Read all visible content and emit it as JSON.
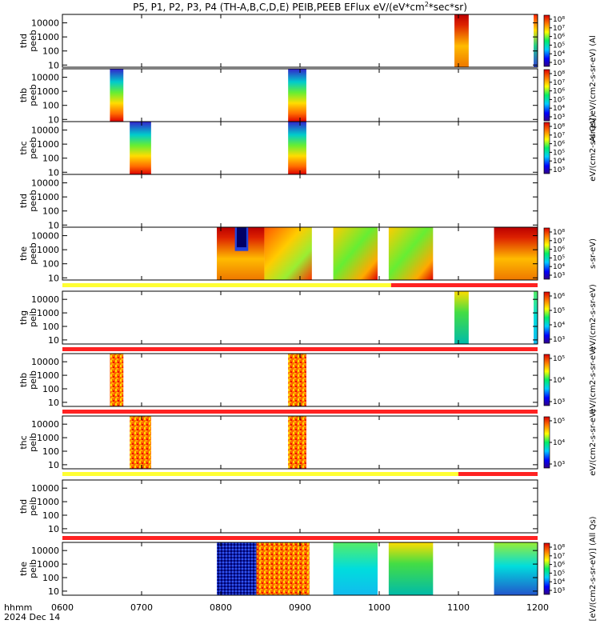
{
  "chart_data": {
    "type": "heatmap",
    "title": "P5, P1, P2, P3, P4 (TH-A,B,C,D,E) PEIB,PEEB EFlux eV/(eV*cm^2*sec*sr)",
    "title_parts": {
      "main": "P5, P1, P2, P3, P4 (TH-A,B,C,D,E) PEIB,PEEB EFlux eV/(eV*cm",
      "sup": "2",
      "tail": "*sec*sr)"
    },
    "x_axis": {
      "ticks": [
        "0600",
        "0700",
        "0800",
        "0900",
        "1000",
        "1100",
        "1200"
      ],
      "tick_hours": [
        6,
        7,
        8,
        9,
        10,
        11,
        12
      ],
      "range_hours": [
        6,
        12
      ],
      "label": "hhmm",
      "date": "2024 Dec 14"
    },
    "y_scale": "log",
    "y_ticks": [
      "10",
      "100",
      "1000",
      "10000"
    ],
    "y_tick_values": [
      10,
      100,
      1000,
      10000
    ],
    "panels": [
      {
        "label1": "thd",
        "label2": "peeb",
        "ylim": [
          7,
          40000
        ],
        "colorbar": {
          "ticks": [
            "10⁸",
            "10⁷",
            "10⁶",
            "10⁵",
            "10⁴",
            "10³"
          ],
          "label": "(Al"
        },
        "blocks": [
          {
            "t0": 10.95,
            "t1": 11.13,
            "kind": "hot",
            "note": "black trace"
          },
          {
            "t0": 11.95,
            "t1": 12.0,
            "kind": "mixed"
          }
        ]
      },
      {
        "label1": "thb",
        "label2": "peeb",
        "ylim": [
          7,
          40000
        ],
        "colorbar": {
          "ticks": [
            "10⁸",
            "10⁷",
            "10⁶",
            "10⁵",
            "10⁴",
            "10³"
          ],
          "label": "Al Qs] eV/(cm2-s-sr-eV)"
        },
        "blocks": [
          {
            "t0": 6.6,
            "t1": 6.77,
            "kind": "grad"
          },
          {
            "t0": 8.85,
            "t1": 9.08,
            "kind": "grad"
          }
        ]
      },
      {
        "label1": "thc",
        "label2": "peeb",
        "ylim": [
          7,
          40000
        ],
        "colorbar": {
          "ticks": [
            "10⁸",
            "10⁷",
            "10⁶",
            "10⁵",
            "10⁴",
            "10³"
          ],
          "label": "eV/(cm2-s-sr-eV)"
        },
        "blocks": [
          {
            "t0": 6.85,
            "t1": 7.12,
            "kind": "grad"
          },
          {
            "t0": 8.85,
            "t1": 9.08,
            "kind": "grad"
          }
        ]
      },
      {
        "label1": "thd",
        "label2": "peeb",
        "ylim": [
          7,
          40000
        ],
        "colorbar": null,
        "blocks": []
      },
      {
        "label1": "the",
        "label2": "peeb",
        "ylim": [
          7,
          40000
        ],
        "colorbar": {
          "ticks": [
            "10⁸",
            "10⁷",
            "10⁶",
            "10⁵",
            "10⁴",
            "10³"
          ],
          "label": "s-sr-eV)"
        },
        "blocks": [
          {
            "t0": 7.95,
            "t1": 8.55,
            "kind": "hotring"
          },
          {
            "t0": 8.55,
            "t1": 9.15,
            "kind": "warm"
          },
          {
            "t0": 9.42,
            "t1": 9.98,
            "kind": "greenwarm"
          },
          {
            "t0": 10.12,
            "t1": 10.68,
            "kind": "greenwarm"
          },
          {
            "t0": 11.45,
            "t1": 12.0,
            "kind": "hot"
          }
        ],
        "mode_bar": [
          {
            "t0": 6.0,
            "t1": 10.15,
            "color": "#ffff33"
          },
          {
            "t0": 10.15,
            "t1": 12.0,
            "color": "#ff2222"
          }
        ]
      },
      {
        "label1": "thg",
        "label2": "peib",
        "ylim": [
          5,
          40000
        ],
        "colorbar": {
          "ticks": [
            "10⁶",
            "10⁵",
            "10⁴",
            "10³"
          ],
          "label": "eV/(cm2-s-sr-eV)"
        },
        "blocks": [
          {
            "t0": 10.95,
            "t1": 11.13,
            "kind": "greengrad"
          },
          {
            "t0": 11.95,
            "t1": 12.0,
            "kind": "cyan"
          }
        ],
        "mode_bar": [
          {
            "t0": 6.0,
            "t1": 12.0,
            "color": "#ff2222"
          }
        ]
      },
      {
        "label1": "thb",
        "label2": "peib",
        "ylim": [
          5,
          40000
        ],
        "colorbar": {
          "ticks": [
            "10⁵",
            "10⁴",
            "10³"
          ],
          "label": "eV/(cm2-s-sr-eV)"
        },
        "blocks": [
          {
            "t0": 6.6,
            "t1": 6.77,
            "kind": "speckle"
          },
          {
            "t0": 8.85,
            "t1": 9.08,
            "kind": "speckle"
          }
        ],
        "mode_bar": [
          {
            "t0": 6.0,
            "t1": 12.0,
            "color": "#ff2222"
          }
        ]
      },
      {
        "label1": "thc",
        "label2": "peib",
        "ylim": [
          5,
          40000
        ],
        "colorbar": {
          "ticks": [
            "10⁵",
            "10⁴",
            "10³"
          ],
          "label": "eV/(cm2-s-sr-eV)"
        },
        "blocks": [
          {
            "t0": 6.85,
            "t1": 7.12,
            "kind": "speckle"
          },
          {
            "t0": 8.85,
            "t1": 9.08,
            "kind": "speckle"
          }
        ],
        "mode_bar": [
          {
            "t0": 6.0,
            "t1": 11.0,
            "color": "#ffff33"
          },
          {
            "t0": 11.0,
            "t1": 12.0,
            "color": "#ff2222"
          }
        ]
      },
      {
        "label1": "thd",
        "label2": "peib",
        "ylim": [
          5,
          40000
        ],
        "colorbar": null,
        "blocks": [],
        "mode_bar": [
          {
            "t0": 6.0,
            "t1": 12.0,
            "color": "#ff2222"
          }
        ]
      },
      {
        "label1": "the",
        "label2": "peib",
        "ylim": [
          5,
          40000
        ],
        "colorbar": {
          "ticks": [
            "10⁸",
            "10⁷",
            "10⁶",
            "10⁵",
            "10⁴",
            "10³"
          ],
          "label": "[eV/(cm2-s-sr-eV)] (All Qs)"
        },
        "blocks": [
          {
            "t0": 7.95,
            "t1": 8.45,
            "kind": "speckledark"
          },
          {
            "t0": 8.45,
            "t1": 9.12,
            "kind": "speckle"
          },
          {
            "t0": 9.42,
            "t1": 9.98,
            "kind": "cyan"
          },
          {
            "t0": 10.12,
            "t1": 10.68,
            "kind": "greengrad"
          },
          {
            "t0": 11.45,
            "t1": 12.0,
            "kind": "bluegrad"
          }
        ]
      }
    ]
  }
}
